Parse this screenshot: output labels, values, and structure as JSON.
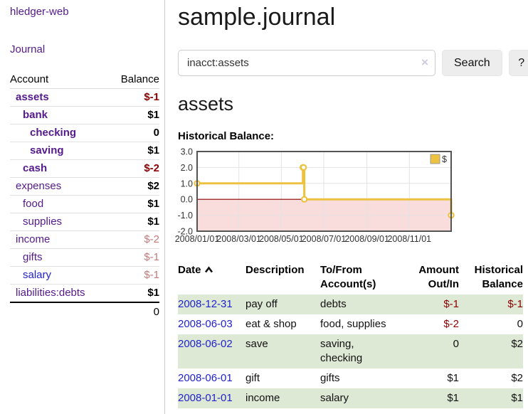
{
  "colors": {
    "link_purple": "#551a8b",
    "link_blue": "#2222cc",
    "negative_strong": "#8b0000",
    "negative_soft": "#c47a7a",
    "row_green": "#dde9d5",
    "button_bg": "#ededed"
  },
  "sidebar": {
    "app_title": "hledger-web",
    "nav": {
      "journal": "Journal"
    },
    "accounts": {
      "headers": {
        "account": "Account",
        "balance": "Balance"
      },
      "rows": [
        {
          "account": "assets",
          "balance": "$-1",
          "depth": 1,
          "bold": true,
          "balance_bold": true,
          "balance_tone": "negative-strong",
          "link_color": "purple"
        },
        {
          "account": "bank",
          "balance": "$1",
          "depth": 2,
          "bold": true,
          "balance_bold": true,
          "balance_tone": "normal",
          "link_color": "purple"
        },
        {
          "account": "checking",
          "balance": "0",
          "depth": 3,
          "bold": true,
          "balance_bold": true,
          "balance_tone": "normal",
          "link_color": "purple"
        },
        {
          "account": "saving",
          "balance": "$1",
          "depth": 3,
          "bold": true,
          "balance_bold": true,
          "balance_tone": "normal",
          "link_color": "purple"
        },
        {
          "account": "cash",
          "balance": "$-2",
          "depth": 2,
          "bold": true,
          "balance_bold": true,
          "balance_tone": "negative-strong",
          "link_color": "purple"
        },
        {
          "account": "expenses",
          "balance": "$2",
          "depth": 1,
          "bold": false,
          "balance_bold": true,
          "balance_tone": "normal",
          "link_color": "purple"
        },
        {
          "account": "food",
          "balance": "$1",
          "depth": 2,
          "bold": false,
          "balance_bold": true,
          "balance_tone": "normal",
          "link_color": "purple"
        },
        {
          "account": "supplies",
          "balance": "$1",
          "depth": 2,
          "bold": false,
          "balance_bold": true,
          "balance_tone": "normal",
          "link_color": "purple"
        },
        {
          "account": "income",
          "balance": "$-2",
          "depth": 1,
          "bold": false,
          "balance_bold": false,
          "balance_tone": "negative-soft",
          "link_color": "purple"
        },
        {
          "account": "gifts",
          "balance": "$-1",
          "depth": 2,
          "bold": false,
          "balance_bold": false,
          "balance_tone": "negative-soft",
          "link_color": "purple"
        },
        {
          "account": "salary",
          "balance": "$-1",
          "depth": 2,
          "bold": false,
          "balance_bold": false,
          "balance_tone": "negative-soft",
          "link_color": "blue"
        },
        {
          "account": "liabilities:debts",
          "balance": "$1",
          "depth": 1,
          "bold": false,
          "balance_bold": true,
          "balance_tone": "normal",
          "link_color": "purple"
        }
      ],
      "total": "0"
    }
  },
  "main": {
    "title": "sample.journal",
    "search": {
      "query": "inacct:assets",
      "clear_icon": "×",
      "button": "Search",
      "help_button": "?"
    },
    "account_heading": "assets",
    "chart_title": "Historical Balance:"
  },
  "chart_data": {
    "type": "line",
    "title": "Historical Balance",
    "step": true,
    "series": [
      {
        "name": "$",
        "color": "#edc240",
        "points": [
          [
            "2008-01-01",
            1
          ],
          [
            "2008-06-01",
            2
          ],
          [
            "2008-06-02",
            2
          ],
          [
            "2008-06-03",
            0
          ],
          [
            "2008-12-31",
            -1
          ]
        ]
      }
    ],
    "xlim": [
      "2008-01-01",
      "2008-12-31"
    ],
    "ylim": [
      -2,
      3
    ],
    "x_ticks": [
      {
        "date": "2008-01-01",
        "label": "2008/01/01"
      },
      {
        "date": "2008-03-01",
        "label": "2008/03/01"
      },
      {
        "date": "2008-05-01",
        "label": "2008/05/01"
      },
      {
        "date": "2008-07-01",
        "label": "2008/07/01"
      },
      {
        "date": "2008-09-01",
        "label": "2008/09/01"
      },
      {
        "date": "2008-11-01",
        "label": "2008/11/01"
      }
    ],
    "y_ticks": [
      "3.0",
      "2.0",
      "1.0",
      "0.0",
      "-1.0",
      "-2.0"
    ],
    "grid": true,
    "legend_position": "top-right",
    "legend_label": "$",
    "negative_region_color": "#f9dcdc",
    "zero_line_color": "#8b0000",
    "border_color": "#545454",
    "grid_color": "#e3e3e3"
  },
  "register": {
    "headers": [
      {
        "label": "Date",
        "sort": "asc"
      },
      {
        "label": "Description"
      },
      {
        "label": "To/From Account(s)"
      },
      {
        "label": "Amount Out/In",
        "align": "right"
      },
      {
        "label": "Historical Balance",
        "align": "right"
      }
    ],
    "rows": [
      {
        "date": "2008-12-31",
        "description": "pay off",
        "accounts": "debts",
        "amount": "$-1",
        "amount_negative": true,
        "balance": "$-1",
        "balance_negative": true,
        "shaded": true
      },
      {
        "date": "2008-06-03",
        "description": "eat & shop",
        "accounts": "food, supplies",
        "amount": "$-2",
        "amount_negative": true,
        "balance": "0",
        "balance_negative": false,
        "shaded": false
      },
      {
        "date": "2008-06-02",
        "description": "save",
        "accounts": "saving, checking",
        "amount": "0",
        "amount_negative": false,
        "balance": "$2",
        "balance_negative": false,
        "shaded": true
      },
      {
        "date": "2008-06-01",
        "description": "gift",
        "accounts": "gifts",
        "amount": "$1",
        "amount_negative": false,
        "balance": "$2",
        "balance_negative": false,
        "shaded": false
      },
      {
        "date": "2008-01-01",
        "description": "income",
        "accounts": "salary",
        "amount": "$1",
        "amount_negative": false,
        "balance": "$1",
        "balance_negative": false,
        "shaded": true
      }
    ]
  }
}
